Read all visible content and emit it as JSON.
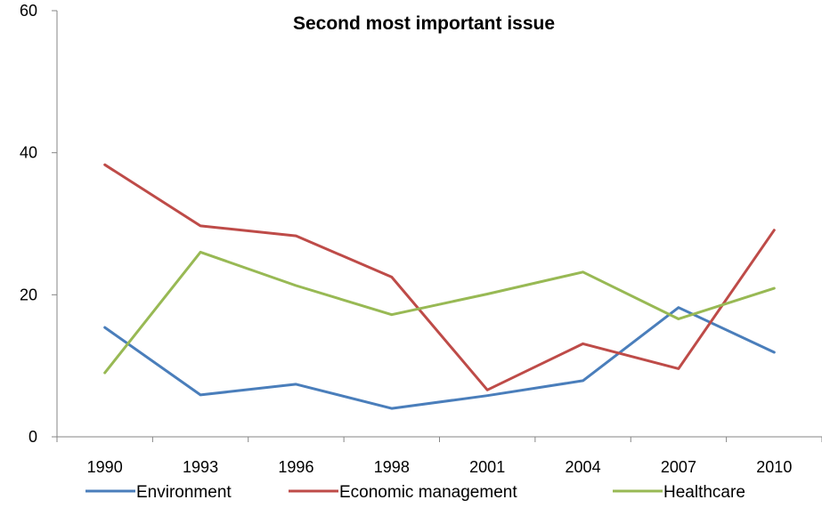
{
  "chart_data": {
    "type": "line",
    "title": "Second most important issue",
    "xlabel": "",
    "ylabel": "",
    "categories": [
      "1990",
      "1993",
      "1996",
      "1998",
      "2001",
      "2004",
      "2007",
      "2010"
    ],
    "ylim": [
      0,
      60
    ],
    "yticks": [
      0,
      20,
      40,
      60
    ],
    "grid": false,
    "legend_position": "bottom",
    "series": [
      {
        "name": "Environment",
        "color": "#4a7ebb",
        "values": [
          15.4,
          5.9,
          7.4,
          4.0,
          5.8,
          7.9,
          18.2,
          11.9
        ]
      },
      {
        "name": "Economic management",
        "color": "#be4b48",
        "values": [
          38.3,
          29.7,
          28.3,
          22.5,
          6.6,
          13.1,
          9.6,
          29.1
        ]
      },
      {
        "name": "Healthcare",
        "color": "#98b954",
        "values": [
          9.0,
          26.0,
          21.3,
          17.2,
          20.1,
          23.2,
          16.6,
          20.9
        ]
      }
    ]
  }
}
